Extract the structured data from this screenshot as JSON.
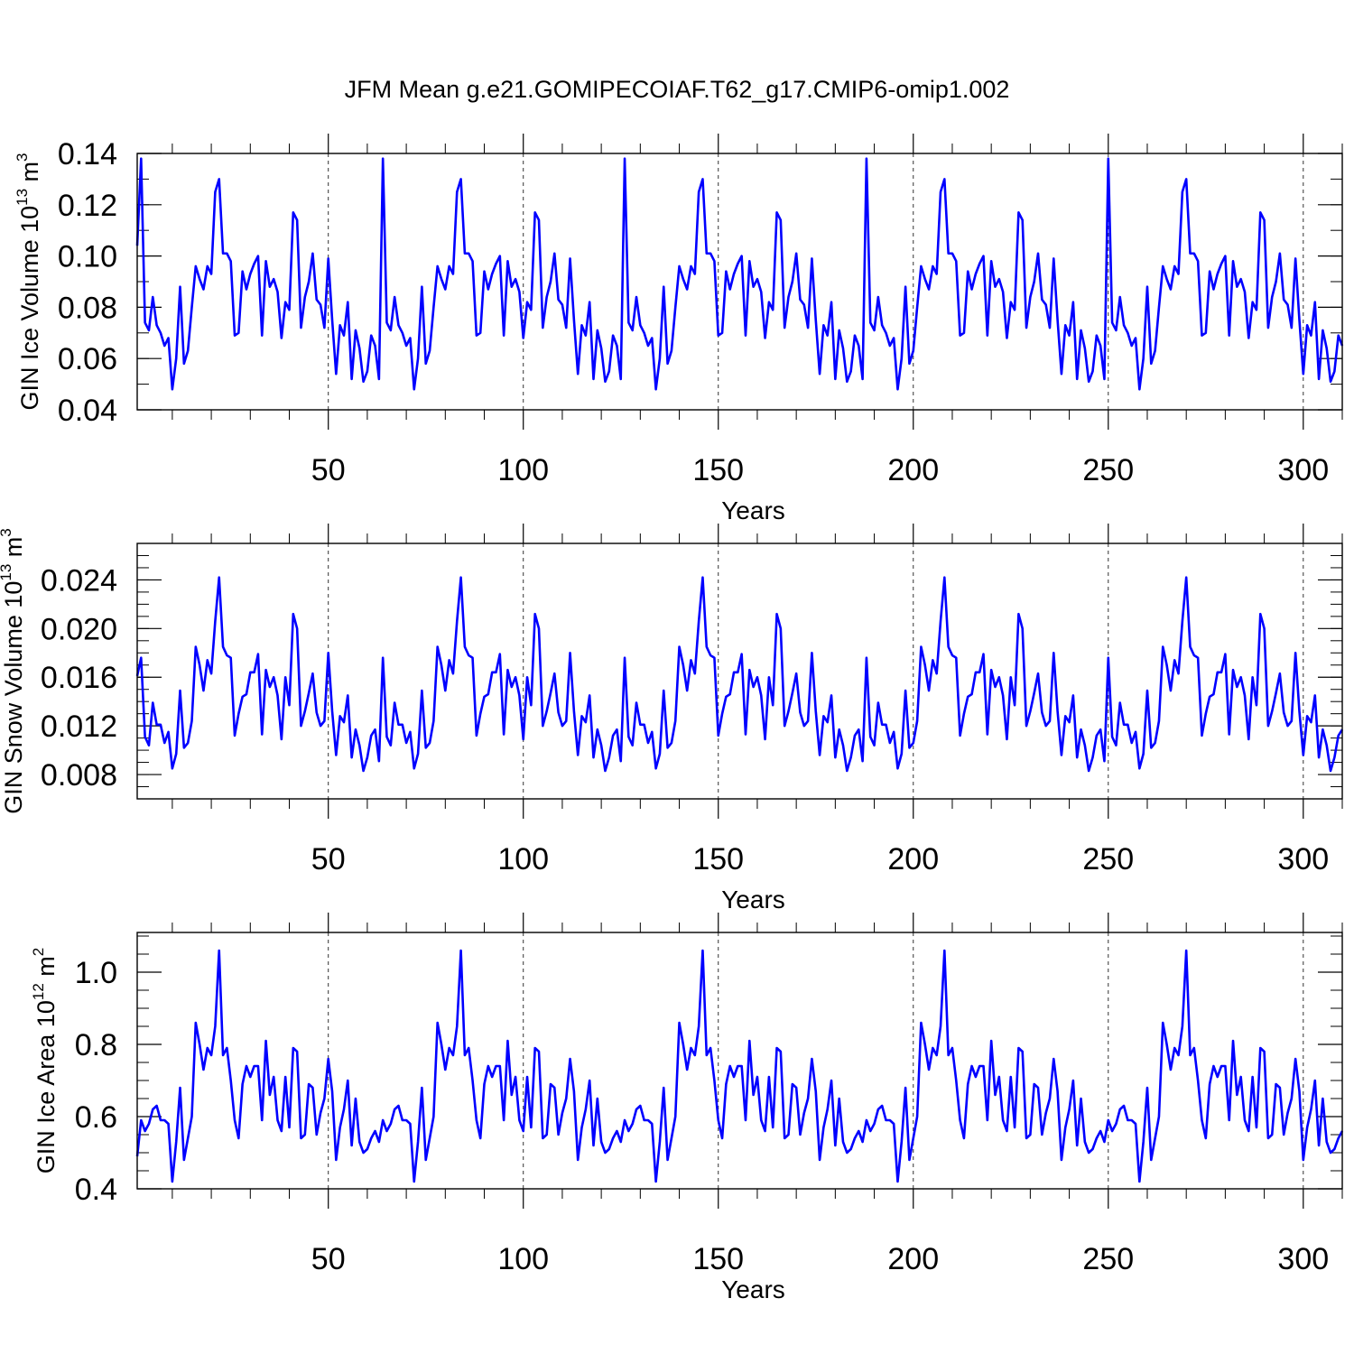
{
  "title": "JFM Mean g.e21.GOMIPECOIAF.T62_g17.CMIP6-omip1.002",
  "line_color": "#0000ff",
  "cycle_years": 62,
  "chart_data": [
    {
      "type": "line",
      "name": "ice-volume",
      "ylabel": {
        "main": "GIN Ice Volume 10",
        "sup": "13",
        "unit": " m",
        "unit_sup": "3"
      },
      "xlabel": "Years",
      "xlim": [
        1,
        310
      ],
      "ylim": [
        0.04,
        0.14
      ],
      "xticks": [
        50,
        100,
        150,
        200,
        250,
        300
      ],
      "xtick_labels": [
        "50",
        "100",
        "150",
        "200",
        "250",
        "300"
      ],
      "yticks": [
        0.04,
        0.06,
        0.08,
        0.1,
        0.12,
        0.14
      ],
      "ytick_labels": [
        "0.04",
        "0.06",
        "0.08",
        "0.10",
        "0.12",
        "0.14"
      ],
      "yminor": 0.01,
      "first_year_value": 0.104,
      "cycle_values": [
        0.138,
        0.074,
        0.071,
        0.084,
        0.073,
        0.07,
        0.065,
        0.068,
        0.048,
        0.06,
        0.088,
        0.058,
        0.063,
        0.08,
        0.096,
        0.091,
        0.087,
        0.096,
        0.093,
        0.125,
        0.13,
        0.101,
        0.101,
        0.098,
        0.069,
        0.07,
        0.094,
        0.087,
        0.093,
        0.097,
        0.1,
        0.069,
        0.098,
        0.088,
        0.091,
        0.086,
        0.068,
        0.082,
        0.079,
        0.117,
        0.114,
        0.072,
        0.084,
        0.09,
        0.101,
        0.083,
        0.081,
        0.072,
        0.099,
        0.075,
        0.054,
        0.073,
        0.069,
        0.082,
        0.052,
        0.071,
        0.064,
        0.051,
        0.055,
        0.069,
        0.065,
        0.052
      ]
    },
    {
      "type": "line",
      "name": "snow-volume",
      "ylabel": {
        "main": "GIN Snow Volume 10",
        "sup": "13",
        "unit": " m",
        "unit_sup": "3"
      },
      "xlabel": "Years",
      "xlim": [
        1,
        310
      ],
      "ylim": [
        0.006,
        0.027
      ],
      "xticks": [
        50,
        100,
        150,
        200,
        250,
        300
      ],
      "xtick_labels": [
        "50",
        "100",
        "150",
        "200",
        "250",
        "300"
      ],
      "yticks": [
        0.008,
        0.012,
        0.016,
        0.02,
        0.024
      ],
      "ytick_labels": [
        "0.008",
        "0.012",
        "0.016",
        "0.020",
        "0.024"
      ],
      "yminor": 0.001,
      "first_year_value": 0.0161,
      "cycle_values": [
        0.0176,
        0.0111,
        0.0104,
        0.0139,
        0.0121,
        0.0121,
        0.0106,
        0.0115,
        0.0085,
        0.0097,
        0.0149,
        0.0102,
        0.0106,
        0.0124,
        0.0185,
        0.017,
        0.0149,
        0.0174,
        0.0163,
        0.0206,
        0.0242,
        0.0185,
        0.0178,
        0.0176,
        0.0112,
        0.013,
        0.0144,
        0.0146,
        0.0164,
        0.0164,
        0.0179,
        0.0113,
        0.0166,
        0.0152,
        0.016,
        0.0145,
        0.0109,
        0.016,
        0.0137,
        0.0212,
        0.02,
        0.012,
        0.0132,
        0.0147,
        0.0163,
        0.0131,
        0.012,
        0.0124,
        0.018,
        0.0132,
        0.0096,
        0.0128,
        0.0123,
        0.0145,
        0.0094,
        0.0117,
        0.0104,
        0.0083,
        0.0094,
        0.0112,
        0.0117,
        0.0091
      ]
    },
    {
      "type": "line",
      "name": "ice-area",
      "ylabel": {
        "main": "GIN Ice Area 10",
        "sup": "12",
        "unit": " m",
        "unit_sup": "2"
      },
      "xlabel": "Years",
      "xlim": [
        1,
        310
      ],
      "ylim": [
        0.4,
        1.11
      ],
      "xticks": [
        50,
        100,
        150,
        200,
        250,
        300
      ],
      "xtick_labels": [
        "50",
        "100",
        "150",
        "200",
        "250",
        "300"
      ],
      "yticks": [
        0.4,
        0.6,
        0.8,
        1.0
      ],
      "ytick_labels": [
        "0.4",
        "0.6",
        "0.8",
        "1.0"
      ],
      "yminor": 0.05,
      "first_year_value": 0.49,
      "cycle_values": [
        0.59,
        0.56,
        0.58,
        0.62,
        0.63,
        0.59,
        0.59,
        0.58,
        0.42,
        0.53,
        0.68,
        0.48,
        0.54,
        0.6,
        0.86,
        0.8,
        0.73,
        0.79,
        0.77,
        0.85,
        1.06,
        0.77,
        0.79,
        0.7,
        0.59,
        0.54,
        0.69,
        0.74,
        0.71,
        0.74,
        0.74,
        0.59,
        0.81,
        0.66,
        0.71,
        0.59,
        0.56,
        0.71,
        0.57,
        0.79,
        0.78,
        0.54,
        0.55,
        0.69,
        0.68,
        0.55,
        0.61,
        0.65,
        0.76,
        0.67,
        0.48,
        0.57,
        0.62,
        0.7,
        0.52,
        0.65,
        0.53,
        0.5,
        0.51,
        0.54,
        0.56,
        0.53
      ]
    }
  ]
}
